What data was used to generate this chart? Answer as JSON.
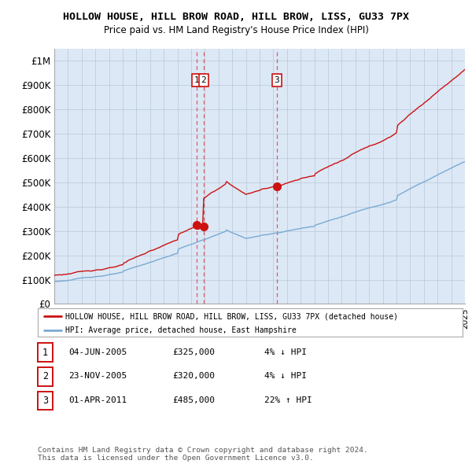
{
  "title": "HOLLOW HOUSE, HILL BROW ROAD, HILL BROW, LISS, GU33 7PX",
  "subtitle": "Price paid vs. HM Land Registry's House Price Index (HPI)",
  "hpi_color": "#7aaad4",
  "price_color": "#cc1111",
  "vline_color": "#dd4444",
  "bg_color": "#dce8f5",
  "grid_color": "#b8c8d8",
  "ylim": [
    0,
    1050000
  ],
  "yticks": [
    0,
    100000,
    200000,
    300000,
    400000,
    500000,
    600000,
    700000,
    800000,
    900000,
    1000000
  ],
  "ytick_labels": [
    "£0",
    "£100K",
    "£200K",
    "£300K",
    "£400K",
    "£500K",
    "£600K",
    "£700K",
    "£800K",
    "£900K",
    "£1M"
  ],
  "sale_dates": [
    2005.42,
    2005.9,
    2011.25
  ],
  "sale_prices": [
    325000,
    320000,
    485000
  ],
  "sale_labels": [
    "1",
    "2",
    "3"
  ],
  "legend_label_price": "HOLLOW HOUSE, HILL BROW ROAD, HILL BROW, LISS, GU33 7PX (detached house)",
  "legend_label_hpi": "HPI: Average price, detached house, East Hampshire",
  "table_rows": [
    [
      "1",
      "04-JUN-2005",
      "£325,000",
      "4% ↓ HPI"
    ],
    [
      "2",
      "23-NOV-2005",
      "£320,000",
      "4% ↓ HPI"
    ],
    [
      "3",
      "01-APR-2011",
      "£485,000",
      "22% ↑ HPI"
    ]
  ],
  "footnote": "Contains HM Land Registry data © Crown copyright and database right 2024.\nThis data is licensed under the Open Government Licence v3.0.",
  "xmin": 1995,
  "xmax": 2025
}
